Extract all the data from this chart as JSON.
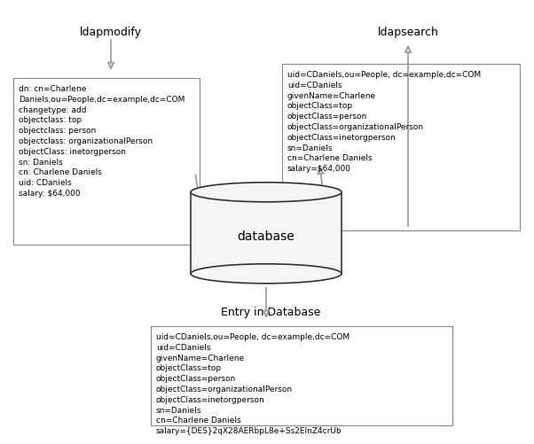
{
  "background_color": "#ffffff",
  "ldapmodify_label": "ldapmodify",
  "ldapsearch_label": "ldapsearch",
  "database_label": "database",
  "entry_label": "Entry in Database",
  "left_box_text": "dn: cn=Charlene\nDaniels,ou=People,dc=example,dc=COM\nchangetype: add\nobjectclass: top\nobjectclass: person\nobjectclass: organizationalPerson\nobjectClass: inetorgperson\nsn: Daniels\ncn: Charlene Daniels\nuid: CDaniels\nsalary: $64,000",
  "right_box_text": "uid=CDaniels,ou=People, dc=example,dc=COM\nuid=CDaniels\ngivenName=Charlene\nobjectClass=top\nobjectClass=person\nobjectClass=organizationalPerson\nobjectClass=inetorgperson\nsn=Daniels\ncn=Charlene Daniels\nsalary=$64,000",
  "bottom_box_text": "uid=CDaniels,ou=People, dc=example,dc=COM\nuid=CDaniels\ngivenName=Charlene\nobjectClass=top\nobjectClass=person\nobjectClass=organizationalPerson\nobjectClass=inetorgperson\nsn=Daniels\ncn=Charlene Daniels\nsalary={DES}2qX28AERbpL8e+Ss2ElnZ4crUb",
  "box_color": "#ffffff",
  "box_edge_color": "#888888",
  "text_color": "#000000",
  "arrow_color": "#aaaaaa",
  "arrow_edge_color": "#888888",
  "font_size": 6.5,
  "label_font_size": 9.0,
  "db_label_font_size": 10.0
}
